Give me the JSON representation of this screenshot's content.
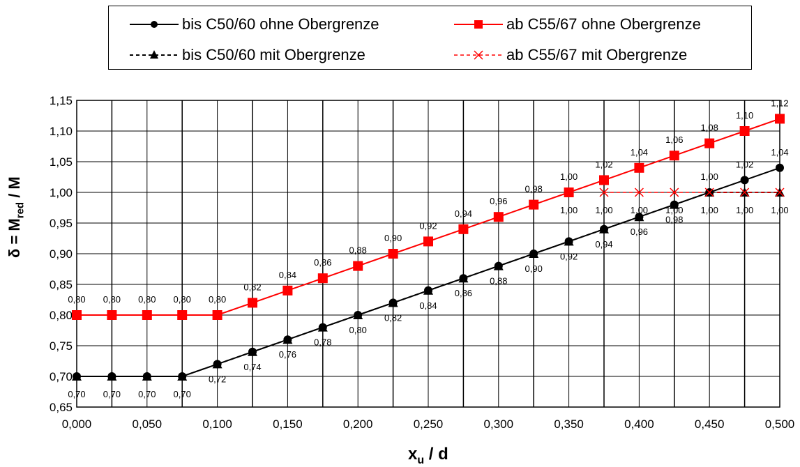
{
  "chart_data": {
    "type": "line",
    "x": [
      0.0,
      0.025,
      0.05,
      0.075,
      0.1,
      0.125,
      0.15,
      0.175,
      0.2,
      0.225,
      0.25,
      0.275,
      0.3,
      0.325,
      0.35,
      0.375,
      0.4,
      0.425,
      0.45,
      0.475,
      0.5
    ],
    "x_tick_labels": [
      "0,000",
      "0,050",
      "0,100",
      "0,150",
      "0,200",
      "0,250",
      "0,300",
      "0,350",
      "0,400",
      "0,450",
      "0,500"
    ],
    "x_ticks": [
      0.0,
      0.05,
      0.1,
      0.15,
      0.2,
      0.25,
      0.3,
      0.35,
      0.4,
      0.45,
      0.5
    ],
    "y_ticks": [
      0.65,
      0.7,
      0.75,
      0.8,
      0.85,
      0.9,
      0.95,
      1.0,
      1.05,
      1.1,
      1.15
    ],
    "y_tick_labels": [
      "0,65",
      "0,70",
      "0,75",
      "0,80",
      "0,85",
      "0,90",
      "0,95",
      "1,00",
      "1,05",
      "1,10",
      "1,15"
    ],
    "xlim": [
      0.0,
      0.5
    ],
    "ylim": [
      0.65,
      1.15
    ],
    "xlabel": "x",
    "xlabel_sub": "u",
    "xlabel_rest": " / d",
    "ylabel": "δ = M",
    "ylabel_sub": "red",
    "ylabel_rest": " / M",
    "grid": true,
    "legend_placement": "top",
    "series": [
      {
        "name": "bis C50/60 ohne Obergrenze",
        "color": "#000000",
        "dash": "solid",
        "marker": "circle",
        "values": [
          0.7,
          0.7,
          0.7,
          0.7,
          0.72,
          0.74,
          0.76,
          0.78,
          0.8,
          0.82,
          0.84,
          0.86,
          0.88,
          0.9,
          0.92,
          0.94,
          0.96,
          0.98,
          1.0,
          1.02,
          1.04
        ]
      },
      {
        "name": "ab C55/67 ohne Obergrenze",
        "color": "#ff0000",
        "dash": "solid",
        "marker": "square",
        "values": [
          0.8,
          0.8,
          0.8,
          0.8,
          0.8,
          0.82,
          0.84,
          0.86,
          0.88,
          0.9,
          0.92,
          0.94,
          0.96,
          0.98,
          1.0,
          1.02,
          1.04,
          1.06,
          1.08,
          1.1,
          1.12
        ]
      },
      {
        "name": "bis C50/60 mit Obergrenze",
        "color": "#000000",
        "dash": "dashed",
        "marker": "triangle",
        "values": [
          0.7,
          0.7,
          0.7,
          0.7,
          0.72,
          0.74,
          0.76,
          0.78,
          0.8,
          0.82,
          0.84,
          0.86,
          0.88,
          0.9,
          0.92,
          0.94,
          0.96,
          0.98,
          1.0,
          1.0,
          1.0
        ]
      },
      {
        "name": "ab C55/67 mit Obergrenze",
        "color": "#ff0000",
        "dash": "dashed",
        "marker": "x",
        "values": [
          null,
          null,
          null,
          null,
          null,
          null,
          null,
          null,
          null,
          null,
          null,
          null,
          null,
          null,
          null,
          1.0,
          1.0,
          1.0,
          1.0,
          1.0,
          1.0
        ]
      }
    ],
    "data_labels_lower": [
      "0,70",
      "0,70",
      "0,70",
      "0,70",
      "0,72",
      "0,74",
      "0,76",
      "0,78",
      "0,80",
      "0,82",
      "0,84",
      "0,86",
      "0,88",
      "0,90",
      "0,92",
      "0,94",
      "0,96",
      "0,98",
      "1,00",
      "1,00",
      "1,00"
    ],
    "data_labels_red": [
      "0,80",
      "0,80",
      "0,80",
      "0,80",
      "0,80",
      "0,82",
      "0,84",
      "0,86",
      "0,88",
      "0,90",
      "0,92",
      "0,94",
      "0,96",
      "0,98",
      "1,00",
      "1,02",
      "1,04",
      "1,06",
      "1,08",
      "1,10",
      "1,12"
    ],
    "data_labels_black_upper": [
      "1,00",
      "1,02",
      "1,04"
    ],
    "data_labels_flat": [
      "1,00",
      "1,00",
      "1,00",
      "1,00",
      "1,00",
      "1,00",
      "1,00"
    ]
  }
}
